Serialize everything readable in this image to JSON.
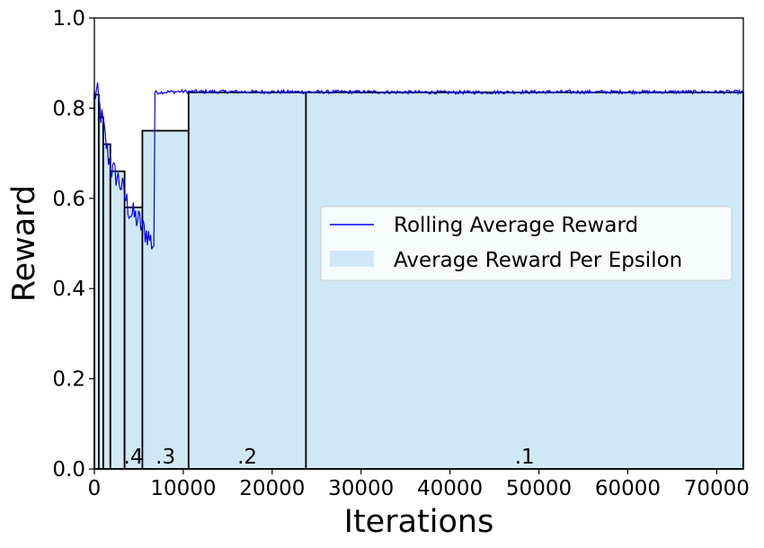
{
  "chart_data": {
    "type": "area",
    "xlabel": "Iterations",
    "ylabel": "Reward",
    "xlim": [
      0,
      73000
    ],
    "ylim": [
      0.0,
      1.0
    ],
    "x_ticks": [
      0,
      10000,
      20000,
      30000,
      40000,
      50000,
      60000,
      70000
    ],
    "x_tick_labels": [
      "0",
      "10000",
      "20000",
      "30000",
      "40000",
      "50000",
      "60000",
      "70000"
    ],
    "y_ticks": [
      0.0,
      0.2,
      0.4,
      0.6,
      0.8,
      1.0
    ],
    "y_tick_labels": [
      "0.0",
      "0.2",
      "0.4",
      "0.6",
      "0.8",
      "1.0"
    ],
    "grid": false,
    "legend_position": "center-right",
    "series": [
      {
        "name": "Rolling Average Reward",
        "kind": "line",
        "color": "#0000ff",
        "points": [
          [
            0,
            0.83
          ],
          [
            300,
            0.835
          ],
          [
            600,
            0.8
          ],
          [
            1000,
            0.76
          ],
          [
            1500,
            0.7
          ],
          [
            2000,
            0.66
          ],
          [
            2500,
            0.65
          ],
          [
            3000,
            0.63
          ],
          [
            3500,
            0.6
          ],
          [
            4000,
            0.57
          ],
          [
            4500,
            0.56
          ],
          [
            5000,
            0.55
          ],
          [
            5500,
            0.53
          ],
          [
            6000,
            0.52
          ],
          [
            6500,
            0.5
          ],
          [
            6700,
            0.5
          ],
          [
            6800,
            0.835
          ],
          [
            10000,
            0.837
          ],
          [
            20000,
            0.836
          ],
          [
            30000,
            0.836
          ],
          [
            40000,
            0.835
          ],
          [
            50000,
            0.836
          ],
          [
            60000,
            0.836
          ],
          [
            73000,
            0.836
          ]
        ]
      },
      {
        "name": "Average Reward Per Epsilon",
        "kind": "step_bars",
        "color": "#cfe8f5",
        "edge_color": "#000000",
        "segments": [
          {
            "x0": 0,
            "x1": 500,
            "value": 0.83,
            "label": ""
          },
          {
            "x0": 500,
            "x1": 1000,
            "value": 0.78,
            "label": ""
          },
          {
            "x0": 1000,
            "x1": 1800,
            "value": 0.72,
            "label": ""
          },
          {
            "x0": 1800,
            "x1": 3400,
            "value": 0.66,
            "label": ""
          },
          {
            "x0": 3400,
            "x1": 5400,
            "value": 0.58,
            "label": ".4"
          },
          {
            "x0": 5400,
            "x1": 10600,
            "value": 0.75,
            "label": ".3"
          },
          {
            "x0": 10600,
            "x1": 23800,
            "value": 0.835,
            "label": ".2"
          },
          {
            "x0": 23800,
            "x1": 73000,
            "value": 0.835,
            "label": ".1"
          }
        ]
      }
    ]
  }
}
